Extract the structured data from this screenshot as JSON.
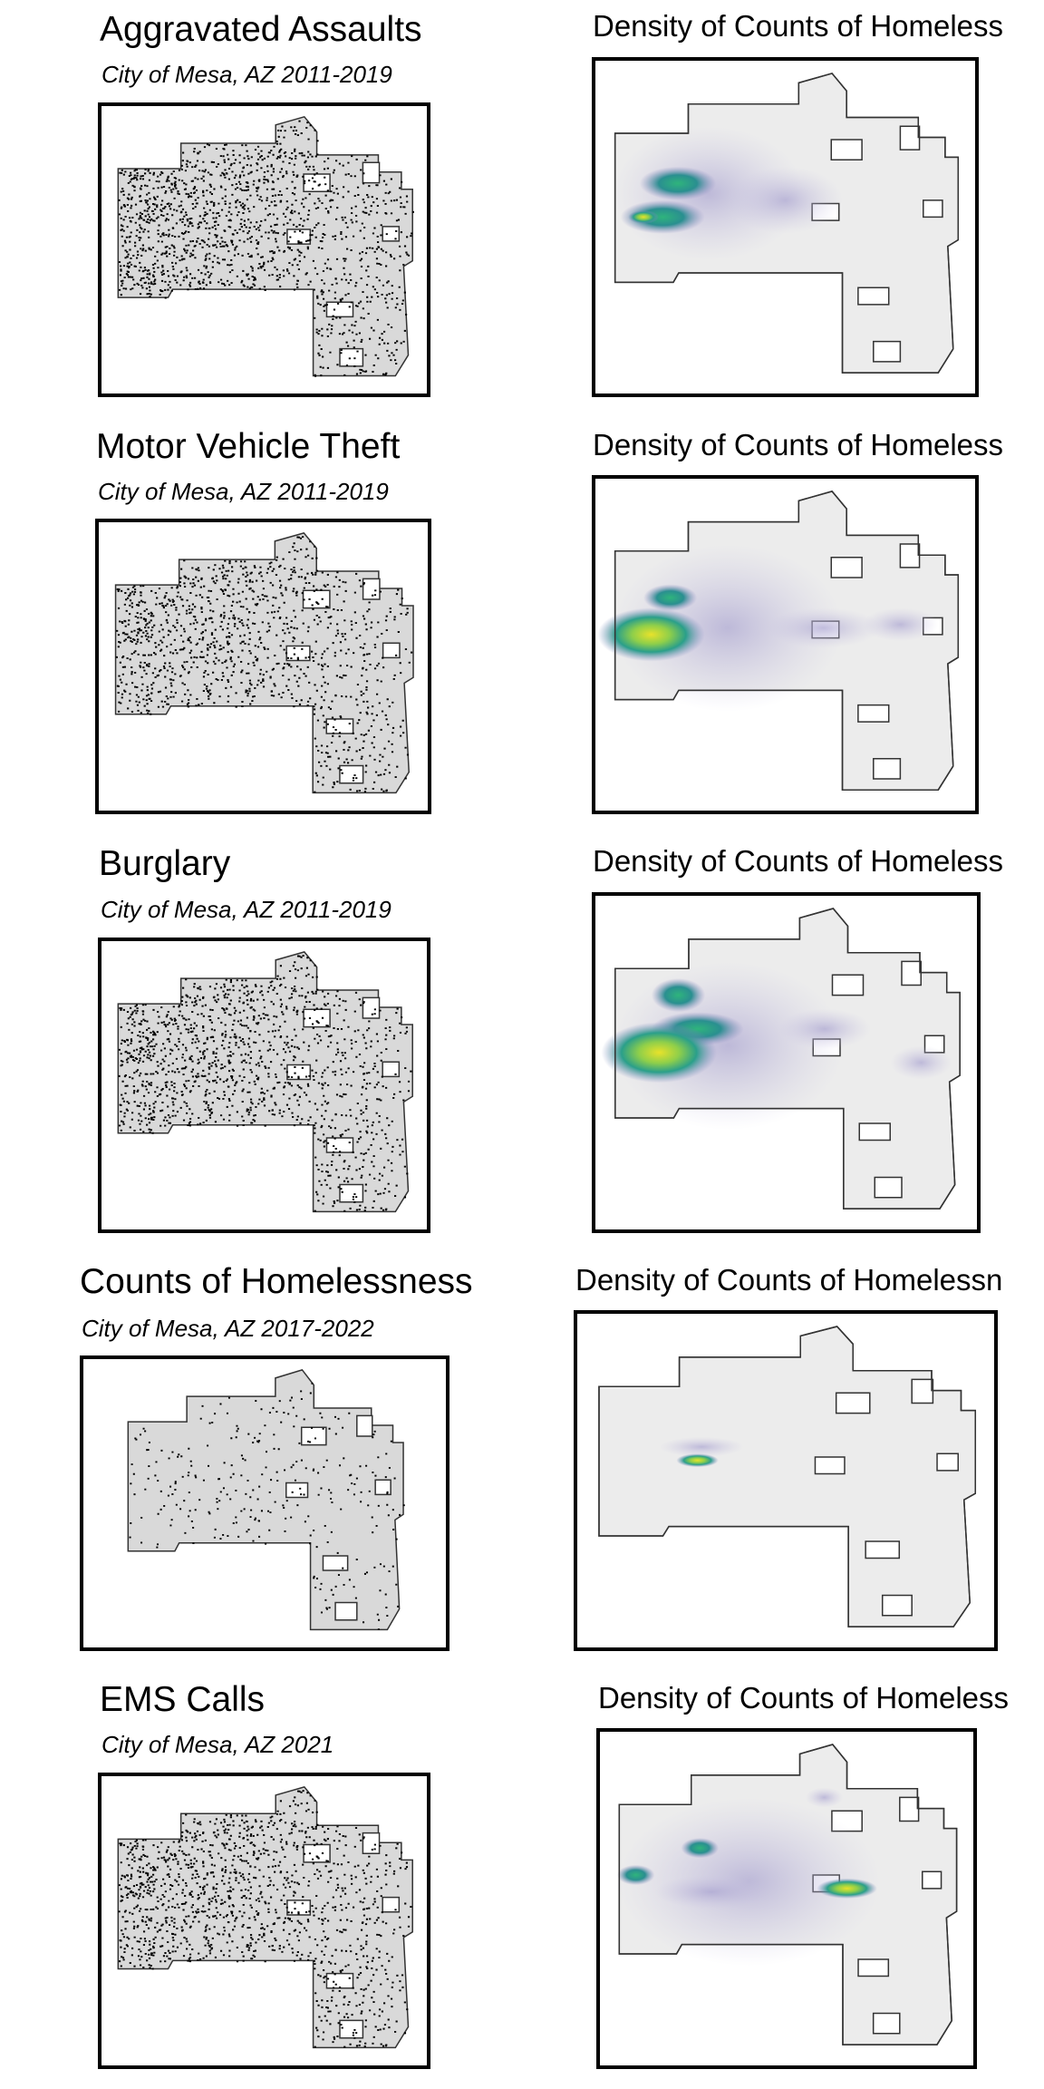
{
  "panels": [
    {
      "title": "Aggravated Assaults",
      "subtitle": "City of Mesa, AZ 2011-2019",
      "density_title": "Density of Counts of Homeless"
    },
    {
      "title": "Motor Vehicle Theft",
      "subtitle": "City of Mesa, AZ 2011-2019",
      "density_title": "Density of Counts of Homeless"
    },
    {
      "title": "Burglary",
      "subtitle": "City of Mesa, AZ 2011-2019",
      "density_title": "Density of Counts of Homeless"
    },
    {
      "title": "Counts of Homelessness",
      "subtitle": "City of Mesa, AZ 2017-2022",
      "density_title": "Density of Counts of Homelessn"
    },
    {
      "title": "EMS Calls",
      "subtitle": "City of Mesa, AZ 2021",
      "density_title": "Density of Counts of Homeless"
    }
  ]
}
